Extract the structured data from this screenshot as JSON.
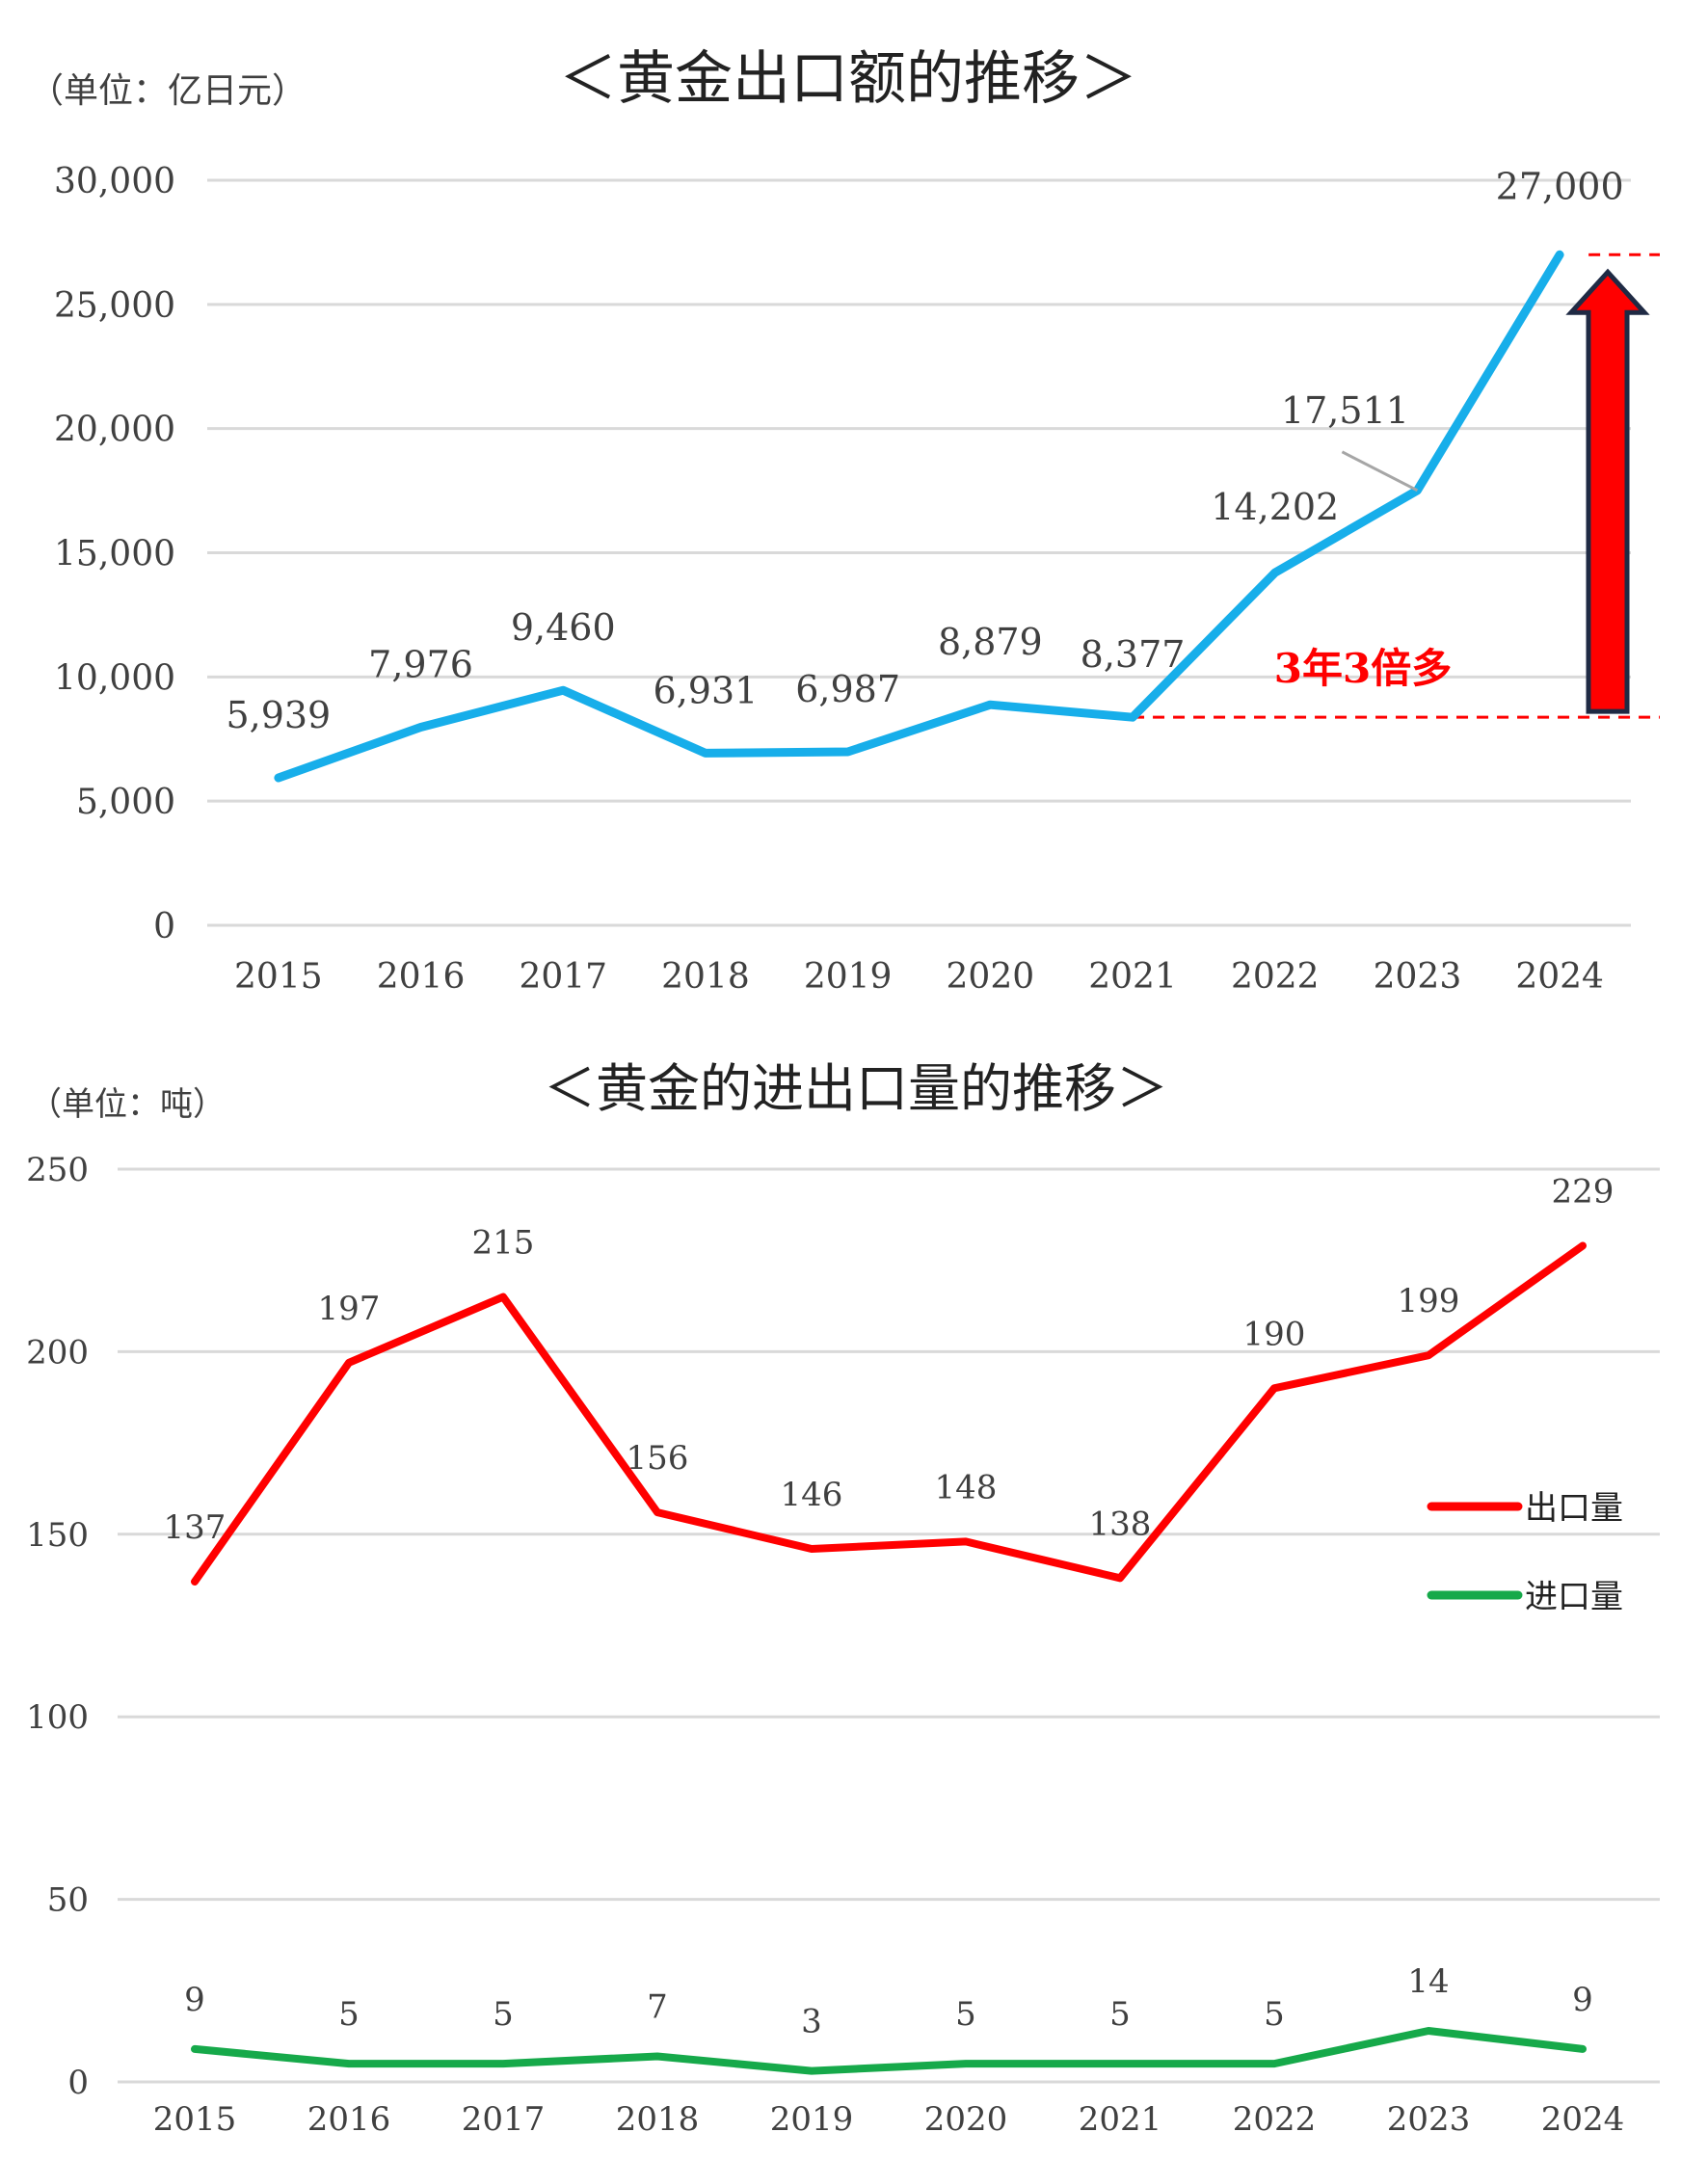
{
  "chart_data": [
    {
      "type": "line",
      "title": "＜黄金出口额的推移＞",
      "unit_label": "（单位：亿日元）",
      "categories": [
        "2015",
        "2016",
        "2017",
        "2018",
        "2019",
        "2020",
        "2021",
        "2022",
        "2023",
        "2024"
      ],
      "y_ticks": [
        "30,000",
        "25,000",
        "20,000",
        "15,000",
        "10,000",
        "5,000",
        "0"
      ],
      "ylim": [
        0,
        30000
      ],
      "grid": true,
      "series": [
        {
          "values": [
            5939,
            7976,
            9460,
            6931,
            6987,
            8879,
            8377,
            14202,
            17511,
            27000
          ],
          "labels": [
            "5,939",
            "7,976",
            "9,460",
            "6,931",
            "6,987",
            "8,879",
            "8,377",
            "14,202",
            "17,511",
            "27,000"
          ],
          "color": "#17AEEA"
        }
      ],
      "annotation": {
        "text": "3年3倍多",
        "color": "#FF0000",
        "from_year": "2021",
        "to_year": "2024"
      }
    },
    {
      "type": "line",
      "title": "＜黄金的进出口量的推移＞",
      "unit_label": "（单位：吨）",
      "categories": [
        "2015",
        "2016",
        "2017",
        "2018",
        "2019",
        "2020",
        "2021",
        "2022",
        "2023",
        "2024"
      ],
      "y_ticks": [
        "250",
        "200",
        "150",
        "100",
        "50",
        "0"
      ],
      "ylim": [
        0,
        250
      ],
      "grid": true,
      "legend_position": "right",
      "series": [
        {
          "name": "出口量",
          "values": [
            137,
            197,
            215,
            156,
            146,
            148,
            138,
            190,
            199,
            229
          ],
          "labels": [
            "137",
            "197",
            "215",
            "156",
            "146",
            "148",
            "138",
            "190",
            "199",
            "229"
          ],
          "color": "#FF0000"
        },
        {
          "name": "进口量",
          "values": [
            9,
            5,
            5,
            7,
            3,
            5,
            5,
            5,
            14,
            9
          ],
          "labels": [
            "9",
            "5",
            "5",
            "7",
            "3",
            "5",
            "5",
            "5",
            "14",
            "9"
          ],
          "color": "#16A94A"
        }
      ]
    }
  ]
}
